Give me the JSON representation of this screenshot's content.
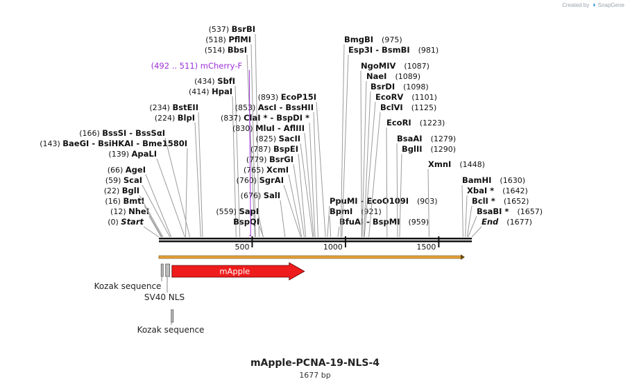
{
  "branding": {
    "created_by": "Created by",
    "product": "SnapGene"
  },
  "plasmid": {
    "name": "mApple-PCNA-19-NLS-4",
    "length_text": "1677 bp",
    "length": 1677
  },
  "scale": {
    "ticks": [
      500,
      1000,
      1500
    ]
  },
  "primers": [
    {
      "label": "mCherry-F",
      "range_text": "(492 .. 511)",
      "start": 492,
      "end": 511,
      "color": "#9b30d9"
    }
  ],
  "enzymes": [
    {
      "pos": 0,
      "pos_text": "(0)",
      "name": "Start",
      "italic": true
    },
    {
      "pos": 12,
      "pos_text": "(12)",
      "name": "NheI"
    },
    {
      "pos": 16,
      "pos_text": "(16)",
      "name": "BmtI"
    },
    {
      "pos": 22,
      "pos_text": "(22)",
      "name": "BglI"
    },
    {
      "pos": 59,
      "pos_text": "(59)",
      "name": "ScaI"
    },
    {
      "pos": 66,
      "pos_text": "(66)",
      "name": "AgeI"
    },
    {
      "pos": 139,
      "pos_text": "(139)",
      "name": "ApaLI"
    },
    {
      "pos": 143,
      "pos_text": "(143)",
      "name": "BaeGI  -  BsiHKAI  -  Bme1580I",
      "label_first": true
    },
    {
      "pos": 166,
      "pos_text": "(166)",
      "name": "BssSI  -  BssSαI"
    },
    {
      "pos": 224,
      "pos_text": "(224)",
      "name": "BlpI"
    },
    {
      "pos": 234,
      "pos_text": "(234)",
      "name": "BstEII"
    },
    {
      "pos": 414,
      "pos_text": "(414)",
      "name": "HpaI"
    },
    {
      "pos": 434,
      "pos_text": "(434)",
      "name": "SbfI"
    },
    {
      "pos": 514,
      "pos_text": "(514)",
      "name": "BbsI"
    },
    {
      "pos": 518,
      "pos_text": "(518)",
      "name": "PflMI"
    },
    {
      "pos": 537,
      "pos_text": "(537)",
      "name": "BsrBI"
    },
    {
      "pos": 559,
      "pos_text": "(559)",
      "name": "SapI"
    },
    {
      "pos": 560,
      "pos_text": "",
      "name": "BspQI"
    },
    {
      "pos": 676,
      "pos_text": "(676)",
      "name": "SalI"
    },
    {
      "pos": 760,
      "pos_text": "(760)",
      "name": "SgrAI"
    },
    {
      "pos": 765,
      "pos_text": "(765)",
      "name": "XcmI"
    },
    {
      "pos": 779,
      "pos_text": "(779)",
      "name": "BsrGI"
    },
    {
      "pos": 787,
      "pos_text": "(787)",
      "name": "BspEI"
    },
    {
      "pos": 825,
      "pos_text": "(825)",
      "name": "SacII"
    },
    {
      "pos": 830,
      "pos_text": "(830)",
      "name": "MluI  -  AflIII"
    },
    {
      "pos": 837,
      "pos_text": "(837)",
      "name": "ClaI *  -  BspDI *"
    },
    {
      "pos": 853,
      "pos_text": "(853)",
      "name": "AscI  -  BssHII"
    },
    {
      "pos": 893,
      "pos_text": "(893)",
      "name": "EcoP15I"
    },
    {
      "pos": 903,
      "pos_text": "(903)",
      "name": "PpuMI  -  EcoO109I",
      "pos_after": true
    },
    {
      "pos": 921,
      "pos_text": "(921)",
      "name": "BpmI",
      "pos_after": true
    },
    {
      "pos": 959,
      "pos_text": "(959)",
      "name": "BfuAI  -  BspMI",
      "pos_after": true
    },
    {
      "pos": 975,
      "pos_text": "(975)",
      "name": "BmgBI",
      "pos_after": true
    },
    {
      "pos": 981,
      "pos_text": "(981)",
      "name": "Esp3I  -  BsmBI",
      "pos_after": true
    },
    {
      "pos": 1087,
      "pos_text": "(1087)",
      "name": "NgoMIV",
      "pos_after": true
    },
    {
      "pos": 1089,
      "pos_text": "(1089)",
      "name": "NaeI",
      "pos_after": true
    },
    {
      "pos": 1098,
      "pos_text": "(1098)",
      "name": "BsrDI",
      "pos_after": true
    },
    {
      "pos": 1101,
      "pos_text": "(1101)",
      "name": "EcoRV",
      "pos_after": true
    },
    {
      "pos": 1125,
      "pos_text": "(1125)",
      "name": "BclVI",
      "pos_after": true
    },
    {
      "pos": 1223,
      "pos_text": "(1223)",
      "name": "EcoRI",
      "pos_after": true
    },
    {
      "pos": 1279,
      "pos_text": "(1279)",
      "name": "BsaAI",
      "pos_after": true
    },
    {
      "pos": 1290,
      "pos_text": "(1290)",
      "name": "BglII",
      "pos_after": true
    },
    {
      "pos": 1448,
      "pos_text": "(1448)",
      "name": "XmnI",
      "pos_after": true
    },
    {
      "pos": 1630,
      "pos_text": "(1630)",
      "name": "BamHI",
      "pos_after": true
    },
    {
      "pos": 1642,
      "pos_text": "(1642)",
      "name": "XbaI *",
      "pos_after": true
    },
    {
      "pos": 1652,
      "pos_text": "(1652)",
      "name": "BclI *",
      "pos_after": true
    },
    {
      "pos": 1657,
      "pos_text": "(1657)",
      "name": "BsaBI *",
      "pos_after": true
    },
    {
      "pos": 1677,
      "pos_text": "(1677)",
      "name": "End",
      "italic": true,
      "pos_after": true
    }
  ],
  "features": [
    {
      "name": "mApple",
      "start": 70,
      "end": 780,
      "type": "cds",
      "color": "#ee1c1c",
      "label_inside": true
    },
    {
      "name": "Kozak sequence",
      "start": 12,
      "end": 22,
      "type": "misc",
      "color": "#8e8e8e"
    },
    {
      "name": "SV40 NLS",
      "start": 36,
      "end": 58,
      "type": "misc",
      "color": "#8e8e8e"
    },
    {
      "name": "Kozak sequence",
      "start": 66,
      "end": 76,
      "type": "misc",
      "color": "#8e8e8e",
      "row": 2
    }
  ],
  "colors": {
    "backbone": "#111111",
    "orf_arrow": "#e8a23a",
    "primer": "#9b30d9"
  }
}
